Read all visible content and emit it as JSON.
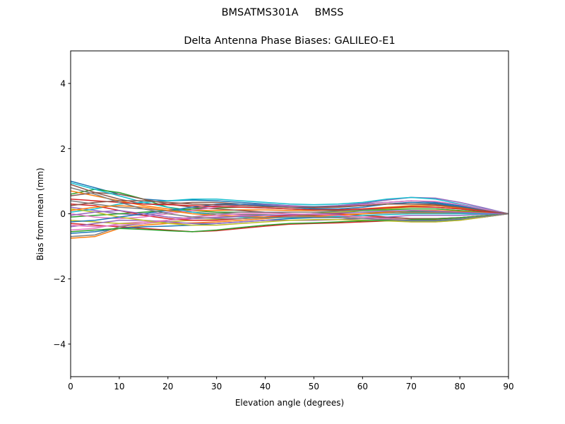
{
  "suptitle": "BMSATMS301A     BMSS",
  "chart_data": {
    "type": "line",
    "title": "Delta Antenna Phase Biases: GALILEO-E1",
    "xlabel": "Elevation angle (degrees)",
    "ylabel": "Bias from mean (mm)",
    "xlim": [
      0,
      90
    ],
    "ylim": [
      -5,
      5
    ],
    "xticks": [
      0,
      10,
      20,
      30,
      40,
      50,
      60,
      70,
      80,
      90
    ],
    "yticks": [
      -4,
      -2,
      0,
      2,
      4
    ],
    "ytick_labels": [
      "−4",
      "−2",
      "0",
      "2",
      "4"
    ],
    "grid": false,
    "legend": "none",
    "colors": [
      "#1f77b4",
      "#ff7f0e",
      "#2ca02c",
      "#d62728",
      "#9467bd",
      "#8c564b",
      "#e377c2",
      "#7f7f7f",
      "#bcbd22",
      "#17becf"
    ],
    "x": [
      0,
      5,
      10,
      15,
      20,
      25,
      30,
      35,
      40,
      45,
      50,
      55,
      60,
      65,
      70,
      75,
      80,
      85,
      90
    ],
    "series": [
      {
        "values": [
          1.0,
          0.8,
          0.6,
          0.45,
          0.4,
          0.42,
          0.4,
          0.35,
          0.3,
          0.25,
          0.22,
          0.25,
          0.3,
          0.35,
          0.4,
          0.35,
          0.25,
          0.12,
          0
        ]
      },
      {
        "values": [
          -0.75,
          -0.7,
          -0.45,
          -0.35,
          -0.3,
          -0.28,
          -0.25,
          -0.2,
          -0.15,
          -0.1,
          -0.05,
          -0.02,
          0,
          0.02,
          0.03,
          0.02,
          0.01,
          0,
          0
        ]
      },
      {
        "values": [
          0.6,
          0.75,
          0.65,
          0.45,
          0.2,
          0.1,
          0.05,
          0.05,
          0.05,
          0.05,
          0.05,
          0.05,
          0.05,
          0.06,
          0.08,
          0.08,
          0.05,
          0.02,
          0
        ]
      },
      {
        "values": [
          -0.3,
          -0.35,
          -0.4,
          -0.45,
          -0.5,
          -0.55,
          -0.52,
          -0.45,
          -0.38,
          -0.32,
          -0.3,
          -0.28,
          -0.25,
          -0.22,
          -0.2,
          -0.18,
          -0.15,
          -0.08,
          0
        ]
      },
      {
        "values": [
          0.2,
          0.1,
          0.0,
          -0.05,
          0.05,
          0.15,
          0.25,
          0.3,
          0.28,
          0.25,
          0.2,
          0.25,
          0.32,
          0.42,
          0.5,
          0.48,
          0.35,
          0.18,
          0
        ]
      },
      {
        "values": [
          0.9,
          0.65,
          0.45,
          0.3,
          0.3,
          0.35,
          0.35,
          0.3,
          0.25,
          0.2,
          0.18,
          0.2,
          0.25,
          0.3,
          0.35,
          0.3,
          0.2,
          0.1,
          0
        ]
      },
      {
        "values": [
          -0.5,
          -0.45,
          -0.3,
          -0.25,
          -0.2,
          -0.15,
          -0.1,
          -0.05,
          -0.05,
          -0.08,
          -0.1,
          -0.12,
          -0.15,
          -0.2,
          -0.25,
          -0.25,
          -0.2,
          -0.1,
          0
        ]
      },
      {
        "values": [
          0.4,
          0.3,
          0.2,
          0.15,
          0.1,
          0.05,
          0.0,
          -0.02,
          -0.03,
          -0.05,
          -0.05,
          -0.03,
          0,
          0.02,
          0.05,
          0.05,
          0.03,
          0.01,
          0
        ]
      },
      {
        "values": [
          -0.2,
          -0.25,
          -0.3,
          -0.3,
          -0.25,
          -0.2,
          -0.18,
          -0.15,
          -0.1,
          -0.05,
          0.0,
          0.05,
          0.1,
          0.15,
          0.2,
          0.2,
          0.15,
          0.08,
          0
        ]
      },
      {
        "values": [
          0.05,
          0.15,
          0.3,
          0.35,
          0.4,
          0.45,
          0.45,
          0.4,
          0.35,
          0.3,
          0.28,
          0.3,
          0.35,
          0.45,
          0.5,
          0.45,
          0.3,
          0.15,
          0
        ]
      },
      {
        "values": [
          -0.6,
          -0.55,
          -0.45,
          -0.4,
          -0.38,
          -0.35,
          -0.3,
          -0.25,
          -0.2,
          -0.15,
          -0.12,
          -0.12,
          -0.15,
          -0.18,
          -0.22,
          -0.22,
          -0.18,
          -0.1,
          0
        ]
      },
      {
        "values": [
          0.7,
          0.55,
          0.4,
          0.25,
          0.15,
          0.1,
          0.1,
          0.12,
          0.12,
          0.1,
          0.1,
          0.12,
          0.15,
          0.2,
          0.25,
          0.25,
          0.18,
          0.08,
          0
        ]
      },
      {
        "values": [
          -0.1,
          -0.05,
          0.0,
          0.05,
          0.1,
          0.15,
          0.18,
          0.2,
          0.18,
          0.15,
          0.12,
          0.1,
          0.1,
          0.12,
          0.15,
          0.15,
          0.1,
          0.05,
          0
        ]
      },
      {
        "values": [
          0.3,
          0.25,
          0.1,
          -0.05,
          -0.15,
          -0.2,
          -0.2,
          -0.15,
          -0.1,
          -0.05,
          0,
          0.0,
          -0.05,
          -0.1,
          -0.15,
          -0.15,
          -0.12,
          -0.06,
          0
        ]
      },
      {
        "values": [
          -0.4,
          -0.3,
          -0.2,
          -0.2,
          -0.25,
          -0.3,
          -0.3,
          -0.25,
          -0.2,
          -0.2,
          -0.2,
          -0.18,
          -0.15,
          -0.1,
          -0.05,
          -0.05,
          -0.05,
          -0.02,
          0
        ]
      },
      {
        "values": [
          0.55,
          0.65,
          0.6,
          0.45,
          0.3,
          0.2,
          0.15,
          0.1,
          0.05,
          0.0,
          -0.05,
          -0.08,
          -0.1,
          -0.12,
          -0.15,
          -0.15,
          -0.12,
          -0.06,
          0
        ]
      },
      {
        "values": [
          0.0,
          -0.1,
          -0.15,
          -0.1,
          0.0,
          0.1,
          0.2,
          0.25,
          0.25,
          0.22,
          0.2,
          0.22,
          0.28,
          0.35,
          0.4,
          0.38,
          0.28,
          0.14,
          0
        ]
      },
      {
        "values": [
          -0.7,
          -0.65,
          -0.4,
          -0.3,
          -0.2,
          -0.1,
          0.0,
          0.05,
          0.05,
          0.05,
          0.05,
          0.08,
          0.12,
          0.18,
          0.22,
          0.2,
          0.15,
          0.07,
          0
        ]
      },
      {
        "values": [
          0.15,
          0.05,
          -0.1,
          -0.2,
          -0.3,
          -0.35,
          -0.35,
          -0.3,
          -0.25,
          -0.2,
          -0.18,
          -0.18,
          -0.2,
          -0.22,
          -0.25,
          -0.25,
          -0.2,
          -0.1,
          0
        ]
      },
      {
        "values": [
          0.95,
          0.75,
          0.55,
          0.35,
          0.2,
          0.05,
          -0.05,
          -0.1,
          -0.12,
          -0.12,
          -0.1,
          -0.08,
          -0.05,
          -0.03,
          0,
          0,
          0,
          0,
          0
        ]
      },
      {
        "values": [
          -0.25,
          -0.2,
          -0.1,
          0.0,
          0.1,
          0.2,
          0.3,
          0.3,
          0.25,
          0.2,
          0.15,
          0.15,
          0.2,
          0.3,
          0.35,
          0.32,
          0.22,
          0.1,
          0
        ]
      },
      {
        "values": [
          0.1,
          0.2,
          0.25,
          0.2,
          0.1,
          0.0,
          -0.05,
          -0.08,
          -0.1,
          -0.1,
          -0.08,
          -0.05,
          0,
          0.05,
          0.1,
          0.1,
          0.07,
          0.03,
          0
        ]
      },
      {
        "values": [
          -0.55,
          -0.5,
          -0.45,
          -0.48,
          -0.52,
          -0.55,
          -0.5,
          -0.42,
          -0.35,
          -0.3,
          -0.28,
          -0.25,
          -0.22,
          -0.2,
          -0.18,
          -0.16,
          -0.12,
          -0.06,
          0
        ]
      },
      {
        "values": [
          0.45,
          0.4,
          0.35,
          0.3,
          0.28,
          0.25,
          0.22,
          0.2,
          0.18,
          0.15,
          0.12,
          0.12,
          0.15,
          0.18,
          0.22,
          0.2,
          0.15,
          0.07,
          0
        ]
      },
      {
        "values": [
          -0.05,
          0.05,
          0.1,
          0.0,
          -0.1,
          -0.15,
          -0.12,
          -0.08,
          -0.05,
          -0.03,
          0,
          0.02,
          0.05,
          0.08,
          0.1,
          0.08,
          0.05,
          0.02,
          0
        ]
      },
      {
        "values": [
          0.25,
          0.35,
          0.4,
          0.4,
          0.35,
          0.3,
          0.28,
          0.25,
          0.22,
          0.2,
          0.2,
          0.22,
          0.25,
          0.3,
          0.3,
          0.27,
          0.2,
          0.1,
          0
        ]
      },
      {
        "values": [
          -0.35,
          -0.4,
          -0.35,
          -0.3,
          -0.2,
          -0.1,
          -0.05,
          0.0,
          0.02,
          0.0,
          -0.02,
          -0.05,
          -0.1,
          -0.15,
          -0.2,
          -0.2,
          -0.15,
          -0.08,
          0
        ]
      },
      {
        "values": [
          0.8,
          0.6,
          0.35,
          0.15,
          0.0,
          -0.1,
          -0.15,
          -0.15,
          -0.12,
          -0.1,
          -0.1,
          -0.12,
          -0.15,
          -0.18,
          -0.2,
          -0.2,
          -0.15,
          -0.08,
          0
        ]
      }
    ]
  }
}
